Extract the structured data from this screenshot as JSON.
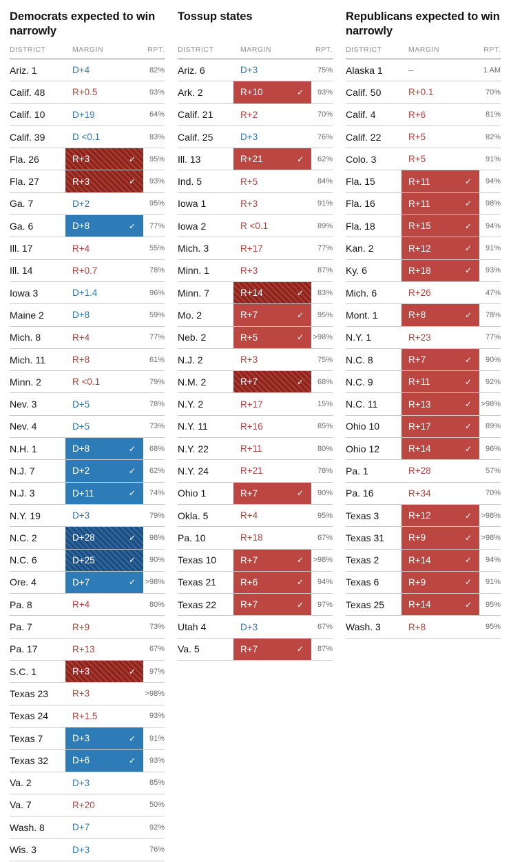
{
  "colors": {
    "dem": "#2d7cb7",
    "rep": "#bc4742",
    "dem_text": "#2e7ab5",
    "rep_text": "#b6413b",
    "dem_hatch_a": "#2a659d",
    "dem_hatch_b": "#1d4a79",
    "rep_hatch_a": "#a33a32",
    "rep_hatch_b": "#8b1f1a",
    "district_text": "#141414",
    "rpt_text": "#696969",
    "header_text": "#8f8f8f",
    "header_line": "#6e6e6e",
    "row_line": "#cbcbcb",
    "check": "#ffffff"
  },
  "icons": {
    "check": "✓"
  },
  "chart_data": [
    {
      "type": "table",
      "title": "Democrats expected to win narrowly",
      "headers": {
        "district": "DISTRICT",
        "margin": "MARGIN",
        "rpt": "RPT."
      },
      "rows": [
        {
          "district": "Ariz. 1",
          "margin": "D+4",
          "party": "D",
          "style": "text",
          "checked": false,
          "rpt": "82%"
        },
        {
          "district": "Calif. 48",
          "margin": "R+0.5",
          "party": "R",
          "style": "text",
          "checked": false,
          "rpt": "93%"
        },
        {
          "district": "Calif. 10",
          "margin": "D+19",
          "party": "D",
          "style": "text",
          "checked": false,
          "rpt": "64%"
        },
        {
          "district": "Calif. 39",
          "margin": "D <0.1",
          "party": "D",
          "style": "text",
          "checked": false,
          "rpt": "83%"
        },
        {
          "district": "Fla. 26",
          "margin": "R+3",
          "party": "R",
          "style": "hatch",
          "checked": true,
          "rpt": "95%"
        },
        {
          "district": "Fla. 27",
          "margin": "R+3",
          "party": "R",
          "style": "hatch",
          "checked": true,
          "rpt": "93%"
        },
        {
          "district": "Ga. 7",
          "margin": "D+2",
          "party": "D",
          "style": "text",
          "checked": false,
          "rpt": "95%"
        },
        {
          "district": "Ga. 6",
          "margin": "D+8",
          "party": "D",
          "style": "solid",
          "checked": true,
          "rpt": "77%"
        },
        {
          "district": "Ill. 17",
          "margin": "R+4",
          "party": "R",
          "style": "text",
          "checked": false,
          "rpt": "55%"
        },
        {
          "district": "Ill. 14",
          "margin": "R+0.7",
          "party": "R",
          "style": "text",
          "checked": false,
          "rpt": "78%"
        },
        {
          "district": "Iowa 3",
          "margin": "D+1.4",
          "party": "D",
          "style": "text",
          "checked": false,
          "rpt": "96%"
        },
        {
          "district": "Maine 2",
          "margin": "D+8",
          "party": "D",
          "style": "text",
          "checked": false,
          "rpt": "59%"
        },
        {
          "district": "Mich. 8",
          "margin": "R+4",
          "party": "R",
          "style": "text",
          "checked": false,
          "rpt": "77%"
        },
        {
          "district": "Mich. 11",
          "margin": "R+8",
          "party": "R",
          "style": "text",
          "checked": false,
          "rpt": "61%"
        },
        {
          "district": "Minn. 2",
          "margin": "R <0.1",
          "party": "R",
          "style": "text",
          "checked": false,
          "rpt": "79%"
        },
        {
          "district": "Nev. 3",
          "margin": "D+5",
          "party": "D",
          "style": "text",
          "checked": false,
          "rpt": "78%"
        },
        {
          "district": "Nev. 4",
          "margin": "D+5",
          "party": "D",
          "style": "text",
          "checked": false,
          "rpt": "73%"
        },
        {
          "district": "N.H. 1",
          "margin": "D+8",
          "party": "D",
          "style": "solid",
          "checked": true,
          "rpt": "68%"
        },
        {
          "district": "N.J. 7",
          "margin": "D+2",
          "party": "D",
          "style": "solid",
          "checked": true,
          "rpt": "62%"
        },
        {
          "district": "N.J. 3",
          "margin": "D+11",
          "party": "D",
          "style": "solid",
          "checked": true,
          "rpt": "74%"
        },
        {
          "district": "N.Y. 19",
          "margin": "D+3",
          "party": "D",
          "style": "text",
          "checked": false,
          "rpt": "79%"
        },
        {
          "district": "N.C. 2",
          "margin": "D+28",
          "party": "D",
          "style": "hatch",
          "checked": true,
          "rpt": "98%"
        },
        {
          "district": "N.C. 6",
          "margin": "D+25",
          "party": "D",
          "style": "hatch",
          "checked": true,
          "rpt": "90%"
        },
        {
          "district": "Ore. 4",
          "margin": "D+7",
          "party": "D",
          "style": "solid",
          "checked": true,
          "rpt": ">98%"
        },
        {
          "district": "Pa. 8",
          "margin": "R+4",
          "party": "R",
          "style": "text",
          "checked": false,
          "rpt": "80%"
        },
        {
          "district": "Pa. 7",
          "margin": "R+9",
          "party": "R",
          "style": "text",
          "checked": false,
          "rpt": "73%"
        },
        {
          "district": "Pa. 17",
          "margin": "R+13",
          "party": "R",
          "style": "text",
          "checked": false,
          "rpt": "67%"
        },
        {
          "district": "S.C. 1",
          "margin": "R+3",
          "party": "R",
          "style": "hatch",
          "checked": true,
          "rpt": "97%"
        },
        {
          "district": "Texas 23",
          "margin": "R+3",
          "party": "R",
          "style": "text",
          "checked": false,
          "rpt": ">98%"
        },
        {
          "district": "Texas 24",
          "margin": "R+1.5",
          "party": "R",
          "style": "text",
          "checked": false,
          "rpt": "93%"
        },
        {
          "district": "Texas 7",
          "margin": "D+3",
          "party": "D",
          "style": "solid",
          "checked": true,
          "rpt": "91%"
        },
        {
          "district": "Texas 32",
          "margin": "D+6",
          "party": "D",
          "style": "solid",
          "checked": true,
          "rpt": "93%"
        },
        {
          "district": "Va. 2",
          "margin": "D+3",
          "party": "D",
          "style": "text",
          "checked": false,
          "rpt": "85%"
        },
        {
          "district": "Va. 7",
          "margin": "R+20",
          "party": "R",
          "style": "text",
          "checked": false,
          "rpt": "50%"
        },
        {
          "district": "Wash. 8",
          "margin": "D+7",
          "party": "D",
          "style": "text",
          "checked": false,
          "rpt": "92%"
        },
        {
          "district": "Wis. 3",
          "margin": "D+3",
          "party": "D",
          "style": "text",
          "checked": false,
          "rpt": "76%"
        }
      ]
    },
    {
      "type": "table",
      "title": "Tossup states",
      "headers": {
        "district": "DISTRICT",
        "margin": "MARGIN",
        "rpt": "RPT."
      },
      "rows": [
        {
          "district": "Ariz. 6",
          "margin": "D+3",
          "party": "D",
          "style": "text",
          "checked": false,
          "rpt": "75%"
        },
        {
          "district": "Ark. 2",
          "margin": "R+10",
          "party": "R",
          "style": "solid",
          "checked": true,
          "rpt": "93%"
        },
        {
          "district": "Calif. 21",
          "margin": "R+2",
          "party": "R",
          "style": "text",
          "checked": false,
          "rpt": "70%"
        },
        {
          "district": "Calif. 25",
          "margin": "D+3",
          "party": "D",
          "style": "text",
          "checked": false,
          "rpt": "76%"
        },
        {
          "district": "Ill. 13",
          "margin": "R+21",
          "party": "R",
          "style": "solid",
          "checked": true,
          "rpt": "62%"
        },
        {
          "district": "Ind. 5",
          "margin": "R+5",
          "party": "R",
          "style": "text",
          "checked": false,
          "rpt": "84%"
        },
        {
          "district": "Iowa 1",
          "margin": "R+3",
          "party": "R",
          "style": "text",
          "checked": false,
          "rpt": "91%"
        },
        {
          "district": "Iowa 2",
          "margin": "R <0.1",
          "party": "R",
          "style": "text",
          "checked": false,
          "rpt": "89%"
        },
        {
          "district": "Mich. 3",
          "margin": "R+17",
          "party": "R",
          "style": "text",
          "checked": false,
          "rpt": "77%"
        },
        {
          "district": "Minn. 1",
          "margin": "R+3",
          "party": "R",
          "style": "text",
          "checked": false,
          "rpt": "87%"
        },
        {
          "district": "Minn. 7",
          "margin": "R+14",
          "party": "R",
          "style": "hatch",
          "checked": true,
          "rpt": "83%"
        },
        {
          "district": "Mo. 2",
          "margin": "R+7",
          "party": "R",
          "style": "solid",
          "checked": true,
          "rpt": "95%"
        },
        {
          "district": "Neb. 2",
          "margin": "R+5",
          "party": "R",
          "style": "solid",
          "checked": true,
          "rpt": ">98%"
        },
        {
          "district": "N.J. 2",
          "margin": "R+3",
          "party": "R",
          "style": "text",
          "checked": false,
          "rpt": "75%"
        },
        {
          "district": "N.M. 2",
          "margin": "R+7",
          "party": "R",
          "style": "hatch",
          "checked": true,
          "rpt": "68%"
        },
        {
          "district": "N.Y. 2",
          "margin": "R+17",
          "party": "R",
          "style": "text",
          "checked": false,
          "rpt": "15%"
        },
        {
          "district": "N.Y. 11",
          "margin": "R+16",
          "party": "R",
          "style": "text",
          "checked": false,
          "rpt": "85%"
        },
        {
          "district": "N.Y. 22",
          "margin": "R+11",
          "party": "R",
          "style": "text",
          "checked": false,
          "rpt": "80%"
        },
        {
          "district": "N.Y. 24",
          "margin": "R+21",
          "party": "R",
          "style": "text",
          "checked": false,
          "rpt": "78%"
        },
        {
          "district": "Ohio 1",
          "margin": "R+7",
          "party": "R",
          "style": "solid",
          "checked": true,
          "rpt": "90%"
        },
        {
          "district": "Okla. 5",
          "margin": "R+4",
          "party": "R",
          "style": "text",
          "checked": false,
          "rpt": "95%"
        },
        {
          "district": "Pa. 10",
          "margin": "R+18",
          "party": "R",
          "style": "text",
          "checked": false,
          "rpt": "67%"
        },
        {
          "district": "Texas 10",
          "margin": "R+7",
          "party": "R",
          "style": "solid",
          "checked": true,
          "rpt": ">98%"
        },
        {
          "district": "Texas 21",
          "margin": "R+6",
          "party": "R",
          "style": "solid",
          "checked": true,
          "rpt": "94%"
        },
        {
          "district": "Texas 22",
          "margin": "R+7",
          "party": "R",
          "style": "solid",
          "checked": true,
          "rpt": "97%"
        },
        {
          "district": "Utah 4",
          "margin": "D+3",
          "party": "D",
          "style": "text",
          "checked": false,
          "rpt": "67%"
        },
        {
          "district": "Va. 5",
          "margin": "R+7",
          "party": "R",
          "style": "solid",
          "checked": true,
          "rpt": "87%"
        }
      ]
    },
    {
      "type": "table",
      "title": "Republicans expected to win narrowly",
      "headers": {
        "district": "DISTRICT",
        "margin": "MARGIN",
        "rpt": "RPT."
      },
      "rows": [
        {
          "district": "Alaska 1",
          "margin": "–",
          "party": "none",
          "style": "text",
          "checked": false,
          "rpt": "1 AM"
        },
        {
          "district": "Calif. 50",
          "margin": "R+0.1",
          "party": "R",
          "style": "text",
          "checked": false,
          "rpt": "70%"
        },
        {
          "district": "Calif. 4",
          "margin": "R+6",
          "party": "R",
          "style": "text",
          "checked": false,
          "rpt": "81%"
        },
        {
          "district": "Calif. 22",
          "margin": "R+5",
          "party": "R",
          "style": "text",
          "checked": false,
          "rpt": "82%"
        },
        {
          "district": "Colo. 3",
          "margin": "R+5",
          "party": "R",
          "style": "text",
          "checked": false,
          "rpt": "91%"
        },
        {
          "district": "Fla. 15",
          "margin": "R+11",
          "party": "R",
          "style": "solid",
          "checked": true,
          "rpt": "94%"
        },
        {
          "district": "Fla. 16",
          "margin": "R+11",
          "party": "R",
          "style": "solid",
          "checked": true,
          "rpt": "98%"
        },
        {
          "district": "Fla. 18",
          "margin": "R+15",
          "party": "R",
          "style": "solid",
          "checked": true,
          "rpt": "94%"
        },
        {
          "district": "Kan. 2",
          "margin": "R+12",
          "party": "R",
          "style": "solid",
          "checked": true,
          "rpt": "91%"
        },
        {
          "district": "Ky. 6",
          "margin": "R+18",
          "party": "R",
          "style": "solid",
          "checked": true,
          "rpt": "93%"
        },
        {
          "district": "Mich. 6",
          "margin": "R+26",
          "party": "R",
          "style": "text",
          "checked": false,
          "rpt": "47%"
        },
        {
          "district": "Mont. 1",
          "margin": "R+8",
          "party": "R",
          "style": "solid",
          "checked": true,
          "rpt": "78%"
        },
        {
          "district": "N.Y. 1",
          "margin": "R+23",
          "party": "R",
          "style": "text",
          "checked": false,
          "rpt": "77%"
        },
        {
          "district": "N.C. 8",
          "margin": "R+7",
          "party": "R",
          "style": "solid",
          "checked": true,
          "rpt": "90%"
        },
        {
          "district": "N.C. 9",
          "margin": "R+11",
          "party": "R",
          "style": "solid",
          "checked": true,
          "rpt": "92%"
        },
        {
          "district": "N.C. 11",
          "margin": "R+13",
          "party": "R",
          "style": "solid",
          "checked": true,
          "rpt": ">98%"
        },
        {
          "district": "Ohio 10",
          "margin": "R+17",
          "party": "R",
          "style": "solid",
          "checked": true,
          "rpt": "89%"
        },
        {
          "district": "Ohio 12",
          "margin": "R+14",
          "party": "R",
          "style": "solid",
          "checked": true,
          "rpt": "96%"
        },
        {
          "district": "Pa. 1",
          "margin": "R+28",
          "party": "R",
          "style": "text",
          "checked": false,
          "rpt": "57%"
        },
        {
          "district": "Pa. 16",
          "margin": "R+34",
          "party": "R",
          "style": "text",
          "checked": false,
          "rpt": "70%"
        },
        {
          "district": "Texas 3",
          "margin": "R+12",
          "party": "R",
          "style": "solid",
          "checked": true,
          "rpt": ">98%"
        },
        {
          "district": "Texas 31",
          "margin": "R+9",
          "party": "R",
          "style": "solid",
          "checked": true,
          "rpt": ">98%"
        },
        {
          "district": "Texas 2",
          "margin": "R+14",
          "party": "R",
          "style": "solid",
          "checked": true,
          "rpt": "94%"
        },
        {
          "district": "Texas 6",
          "margin": "R+9",
          "party": "R",
          "style": "solid",
          "checked": true,
          "rpt": "91%"
        },
        {
          "district": "Texas 25",
          "margin": "R+14",
          "party": "R",
          "style": "solid",
          "checked": true,
          "rpt": "95%"
        },
        {
          "district": "Wash. 3",
          "margin": "R+8",
          "party": "R",
          "style": "text",
          "checked": false,
          "rpt": "95%"
        }
      ]
    }
  ]
}
